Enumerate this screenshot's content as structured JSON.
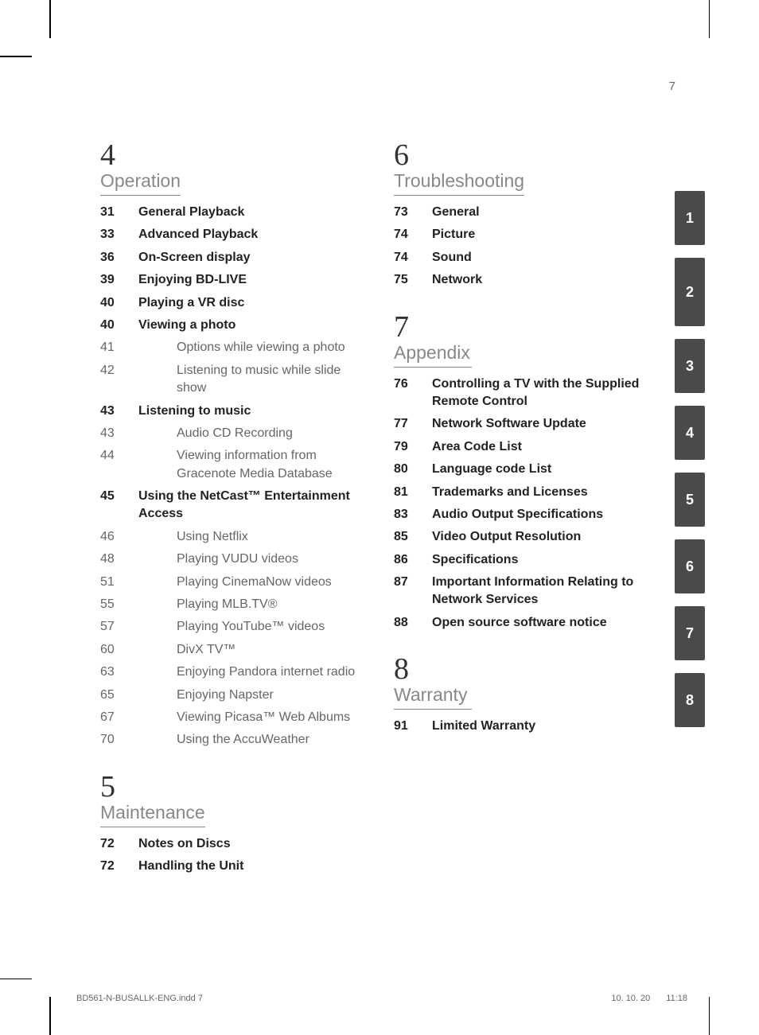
{
  "page_number": "7",
  "sections": {
    "s4": {
      "num": "4",
      "title": "Operation",
      "entries": [
        {
          "page": "31",
          "text": "General Playback",
          "bold": true,
          "indent": false
        },
        {
          "page": "33",
          "text": "Advanced Playback",
          "bold": true,
          "indent": false
        },
        {
          "page": "36",
          "text": "On-Screen display",
          "bold": true,
          "indent": false
        },
        {
          "page": "39",
          "text": "Enjoying BD-LIVE",
          "bold": true,
          "indent": false
        },
        {
          "page": "40",
          "text": "Playing a VR disc",
          "bold": true,
          "indent": false
        },
        {
          "page": "40",
          "text": "Viewing a photo",
          "bold": true,
          "indent": false
        },
        {
          "page": "41",
          "text": "Options while viewing a photo",
          "bold": false,
          "indent": true
        },
        {
          "page": "42",
          "text": "Listening to music while slide show",
          "bold": false,
          "indent": true
        },
        {
          "page": "43",
          "text": "Listening to music",
          "bold": true,
          "indent": false
        },
        {
          "page": "43",
          "text": "Audio CD Recording",
          "bold": false,
          "indent": true
        },
        {
          "page": "44",
          "text": "Viewing information from Gracenote Media Database",
          "bold": false,
          "indent": true
        },
        {
          "page": "45",
          "text": "Using the NetCast™ Entertainment Access",
          "bold": true,
          "indent": false
        },
        {
          "page": "46",
          "text": "Using Netflix",
          "bold": false,
          "indent": true
        },
        {
          "page": "48",
          "text": "Playing VUDU videos",
          "bold": false,
          "indent": true
        },
        {
          "page": "51",
          "text": "Playing CinemaNow videos",
          "bold": false,
          "indent": true
        },
        {
          "page": "55",
          "text": "Playing MLB.TV®",
          "bold": false,
          "indent": true
        },
        {
          "page": "57",
          "text": "Playing YouTube™ videos",
          "bold": false,
          "indent": true
        },
        {
          "page": "60",
          "text": "DivX TV™",
          "bold": false,
          "indent": true
        },
        {
          "page": "63",
          "text": "Enjoying Pandora internet radio",
          "bold": false,
          "indent": true
        },
        {
          "page": "65",
          "text": "Enjoying Napster",
          "bold": false,
          "indent": true
        },
        {
          "page": "67",
          "text": "Viewing Picasa™ Web Albums",
          "bold": false,
          "indent": true
        },
        {
          "page": "70",
          "text": "Using the AccuWeather",
          "bold": false,
          "indent": true
        }
      ]
    },
    "s5": {
      "num": "5",
      "title": "Maintenance",
      "entries": [
        {
          "page": "72",
          "text": "Notes on Discs",
          "bold": true,
          "indent": false
        },
        {
          "page": "72",
          "text": "Handling the Unit",
          "bold": true,
          "indent": false
        }
      ]
    },
    "s6": {
      "num": "6",
      "title": "Troubleshooting",
      "entries": [
        {
          "page": "73",
          "text": "General",
          "bold": true,
          "indent": false
        },
        {
          "page": "74",
          "text": "Picture",
          "bold": true,
          "indent": false
        },
        {
          "page": "74",
          "text": "Sound",
          "bold": true,
          "indent": false
        },
        {
          "page": "75",
          "text": "Network",
          "bold": true,
          "indent": false
        }
      ]
    },
    "s7": {
      "num": "7",
      "title": "Appendix",
      "entries": [
        {
          "page": "76",
          "text": "Controlling a TV with the Supplied Remote Control",
          "bold": true,
          "indent": false
        },
        {
          "page": "77",
          "text": "Network Software Update",
          "bold": true,
          "indent": false
        },
        {
          "page": "79",
          "text": "Area Code List",
          "bold": true,
          "indent": false
        },
        {
          "page": "80",
          "text": "Language code List",
          "bold": true,
          "indent": false
        },
        {
          "page": "81",
          "text": "Trademarks and Licenses",
          "bold": true,
          "indent": false
        },
        {
          "page": "83",
          "text": "Audio Output Specifications",
          "bold": true,
          "indent": false
        },
        {
          "page": "85",
          "text": "Video Output Resolution",
          "bold": true,
          "indent": false
        },
        {
          "page": "86",
          "text": "Specifications",
          "bold": true,
          "indent": false
        },
        {
          "page": "87",
          "text": "Important Information Relating to Network Services",
          "bold": true,
          "indent": false
        },
        {
          "page": "88",
          "text": "Open source software notice",
          "bold": true,
          "indent": false
        }
      ]
    },
    "s8": {
      "num": "8",
      "title": "Warranty",
      "entries": [
        {
          "page": "91",
          "text": "Limited Warranty",
          "bold": true,
          "indent": false
        }
      ]
    }
  },
  "tabs": [
    "1",
    "2",
    "3",
    "4",
    "5",
    "6",
    "7",
    "8"
  ],
  "footer": {
    "left": "BD561-N-BUSALLK-ENG.indd   7",
    "date": "10. 10. 20",
    "time": "11:18"
  }
}
